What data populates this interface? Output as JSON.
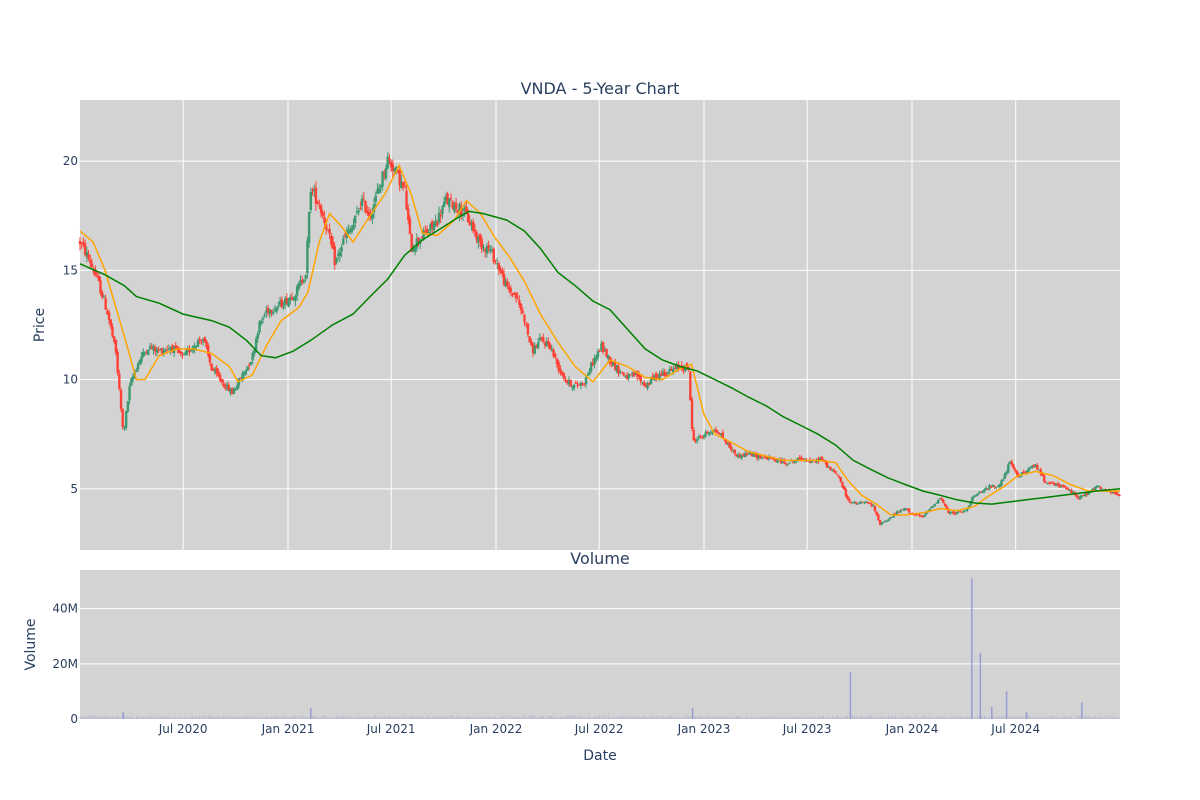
{
  "chart_data": [
    {
      "type": "candlestick",
      "title": "VNDA - 5-Year Chart",
      "xlabel": "",
      "ylabel": "Price",
      "ylim": [
        2.2,
        22.8
      ],
      "yticks": [
        5,
        10,
        15,
        20
      ],
      "xlim": [
        "2020-01-02",
        "2024-12-31"
      ],
      "xticks": [
        {
          "date": "2020-07-01",
          "label": "Jul 2020"
        },
        {
          "date": "2021-01-01",
          "label": "Jan 2021"
        },
        {
          "date": "2021-07-01",
          "label": "Jul 2021"
        },
        {
          "date": "2022-01-01",
          "label": "Jan 2022"
        },
        {
          "date": "2022-07-01",
          "label": "Jul 2022"
        },
        {
          "date": "2023-01-01",
          "label": "Jan 2023"
        },
        {
          "date": "2023-07-01",
          "label": "Jul 2023"
        },
        {
          "date": "2024-01-01",
          "label": "Jan 2024"
        },
        {
          "date": "2024-07-01",
          "label": "Jul 2024"
        }
      ],
      "grid": true,
      "colors": {
        "up": "#3d9970",
        "down": "#ff4136",
        "ma_short": "#ffa500",
        "ma_long": "#008000"
      },
      "price_path": [
        [
          "2020-01-02",
          16.3
        ],
        [
          "2020-01-20",
          15.4
        ],
        [
          "2020-02-05",
          14.3
        ],
        [
          "2020-02-20",
          13.0
        ],
        [
          "2020-03-05",
          11.2
        ],
        [
          "2020-03-18",
          7.5
        ],
        [
          "2020-03-30",
          9.8
        ],
        [
          "2020-04-15",
          10.9
        ],
        [
          "2020-05-01",
          11.5
        ],
        [
          "2020-05-20",
          11.3
        ],
        [
          "2020-06-10",
          11.5
        ],
        [
          "2020-07-01",
          11.0
        ],
        [
          "2020-07-20",
          11.6
        ],
        [
          "2020-08-05",
          11.9
        ],
        [
          "2020-08-20",
          10.5
        ],
        [
          "2020-09-10",
          9.8
        ],
        [
          "2020-09-25",
          9.4
        ],
        [
          "2020-10-15",
          10.3
        ],
        [
          "2020-10-30",
          11.0
        ],
        [
          "2020-11-10",
          12.4
        ],
        [
          "2020-11-25",
          13.2
        ],
        [
          "2020-12-10",
          13.3
        ],
        [
          "2020-12-28",
          13.6
        ],
        [
          "2021-01-15",
          14.0
        ],
        [
          "2021-02-01",
          14.9
        ],
        [
          "2021-02-10",
          18.8
        ],
        [
          "2021-02-25",
          18.0
        ],
        [
          "2021-03-10",
          17.0
        ],
        [
          "2021-03-25",
          15.3
        ],
        [
          "2021-04-10",
          16.5
        ],
        [
          "2021-04-25",
          17.0
        ],
        [
          "2021-05-10",
          18.2
        ],
        [
          "2021-05-25",
          17.5
        ],
        [
          "2021-06-10",
          18.8
        ],
        [
          "2021-06-25",
          20.1
        ],
        [
          "2021-07-10",
          19.5
        ],
        [
          "2021-07-25",
          18.6
        ],
        [
          "2021-08-05",
          16.0
        ],
        [
          "2021-08-20",
          16.5
        ],
        [
          "2021-09-05",
          16.8
        ],
        [
          "2021-09-20",
          17.3
        ],
        [
          "2021-10-05",
          18.2
        ],
        [
          "2021-10-20",
          18.0
        ],
        [
          "2021-11-05",
          17.7
        ],
        [
          "2021-11-20",
          17.0
        ],
        [
          "2021-12-05",
          16.2
        ],
        [
          "2021-12-20",
          16.0
        ],
        [
          "2022-01-05",
          15.2
        ],
        [
          "2022-01-20",
          14.2
        ],
        [
          "2022-02-05",
          13.8
        ],
        [
          "2022-02-20",
          12.8
        ],
        [
          "2022-03-05",
          11.3
        ],
        [
          "2022-03-20",
          11.8
        ],
        [
          "2022-04-05",
          11.6
        ],
        [
          "2022-04-20",
          10.6
        ],
        [
          "2022-05-05",
          9.9
        ],
        [
          "2022-05-20",
          9.7
        ],
        [
          "2022-06-05",
          9.9
        ],
        [
          "2022-06-20",
          10.8
        ],
        [
          "2022-07-05",
          11.5
        ],
        [
          "2022-07-20",
          10.9
        ],
        [
          "2022-08-05",
          10.4
        ],
        [
          "2022-08-20",
          10.1
        ],
        [
          "2022-09-05",
          10.2
        ],
        [
          "2022-09-20",
          9.7
        ],
        [
          "2022-10-05",
          10.1
        ],
        [
          "2022-10-20",
          10.3
        ],
        [
          "2022-11-05",
          10.4
        ],
        [
          "2022-11-20",
          10.6
        ],
        [
          "2022-12-05",
          10.5
        ],
        [
          "2022-12-12",
          7.2
        ],
        [
          "2022-12-28",
          7.4
        ],
        [
          "2023-01-15",
          7.7
        ],
        [
          "2023-01-30",
          7.5
        ],
        [
          "2023-02-15",
          6.9
        ],
        [
          "2023-03-01",
          6.5
        ],
        [
          "2023-03-20",
          6.6
        ],
        [
          "2023-04-05",
          6.5
        ],
        [
          "2023-04-25",
          6.4
        ],
        [
          "2023-05-10",
          6.3
        ],
        [
          "2023-05-25",
          6.2
        ],
        [
          "2023-06-10",
          6.3
        ],
        [
          "2023-06-25",
          6.4
        ],
        [
          "2023-07-10",
          6.2
        ],
        [
          "2023-07-25",
          6.4
        ],
        [
          "2023-08-10",
          5.9
        ],
        [
          "2023-08-25",
          5.6
        ],
        [
          "2023-09-10",
          4.5
        ],
        [
          "2023-09-25",
          4.3
        ],
        [
          "2023-10-10",
          4.4
        ],
        [
          "2023-10-25",
          4.2
        ],
        [
          "2023-11-05",
          3.4
        ],
        [
          "2023-11-20",
          3.6
        ],
        [
          "2023-12-05",
          3.9
        ],
        [
          "2023-12-20",
          4.1
        ],
        [
          "2024-01-05",
          3.8
        ],
        [
          "2024-01-20",
          3.7
        ],
        [
          "2024-02-05",
          4.2
        ],
        [
          "2024-02-20",
          4.6
        ],
        [
          "2024-03-05",
          3.9
        ],
        [
          "2024-03-20",
          3.9
        ],
        [
          "2024-04-05",
          4.0
        ],
        [
          "2024-04-15",
          4.6
        ],
        [
          "2024-04-30",
          4.8
        ],
        [
          "2024-05-15",
          5.1
        ],
        [
          "2024-05-30",
          5.1
        ],
        [
          "2024-06-10",
          5.5
        ],
        [
          "2024-06-20",
          6.2
        ],
        [
          "2024-07-05",
          5.6
        ],
        [
          "2024-07-20",
          5.8
        ],
        [
          "2024-08-05",
          6.1
        ],
        [
          "2024-08-20",
          5.4
        ],
        [
          "2024-09-05",
          5.2
        ],
        [
          "2024-09-20",
          5.1
        ],
        [
          "2024-10-05",
          4.9
        ],
        [
          "2024-10-20",
          4.6
        ],
        [
          "2024-11-05",
          4.8
        ],
        [
          "2024-11-20",
          5.1
        ],
        [
          "2024-12-05",
          4.9
        ],
        [
          "2024-12-31",
          4.7
        ]
      ],
      "ma_short_path": [
        [
          "2020-01-02",
          16.8
        ],
        [
          "2020-01-25",
          16.3
        ],
        [
          "2020-02-15",
          15.0
        ],
        [
          "2020-03-05",
          13.3
        ],
        [
          "2020-03-25",
          11.5
        ],
        [
          "2020-04-10",
          10.0
        ],
        [
          "2020-04-25",
          10.0
        ],
        [
          "2020-05-20",
          11.1
        ],
        [
          "2020-06-20",
          11.4
        ],
        [
          "2020-07-20",
          11.4
        ],
        [
          "2020-08-20",
          11.2
        ],
        [
          "2020-09-20",
          10.6
        ],
        [
          "2020-10-05",
          9.9
        ],
        [
          "2020-10-30",
          10.2
        ],
        [
          "2020-11-25",
          11.6
        ],
        [
          "2020-12-20",
          12.7
        ],
        [
          "2021-01-20",
          13.3
        ],
        [
          "2021-02-05",
          14.0
        ],
        [
          "2021-02-25",
          16.3
        ],
        [
          "2021-03-15",
          17.6
        ],
        [
          "2021-04-05",
          17.0
        ],
        [
          "2021-04-25",
          16.3
        ],
        [
          "2021-05-20",
          17.3
        ],
        [
          "2021-06-20",
          18.5
        ],
        [
          "2021-07-15",
          19.8
        ],
        [
          "2021-08-05",
          18.5
        ],
        [
          "2021-08-25",
          16.7
        ],
        [
          "2021-09-20",
          16.6
        ],
        [
          "2021-10-20",
          17.3
        ],
        [
          "2021-11-10",
          18.2
        ],
        [
          "2021-12-05",
          17.6
        ],
        [
          "2021-12-30",
          16.5
        ],
        [
          "2022-01-25",
          15.6
        ],
        [
          "2022-02-20",
          14.5
        ],
        [
          "2022-03-20",
          13.0
        ],
        [
          "2022-04-20",
          11.7
        ],
        [
          "2022-05-20",
          10.6
        ],
        [
          "2022-06-20",
          9.9
        ],
        [
          "2022-07-20",
          10.9
        ],
        [
          "2022-08-20",
          10.6
        ],
        [
          "2022-09-20",
          10.1
        ],
        [
          "2022-10-20",
          10.0
        ],
        [
          "2022-11-20",
          10.5
        ],
        [
          "2022-12-10",
          10.7
        ],
        [
          "2023-01-01",
          8.4
        ],
        [
          "2023-01-20",
          7.5
        ],
        [
          "2023-02-20",
          7.1
        ],
        [
          "2023-03-20",
          6.7
        ],
        [
          "2023-04-20",
          6.5
        ],
        [
          "2023-05-20",
          6.3
        ],
        [
          "2023-06-20",
          6.3
        ],
        [
          "2023-07-20",
          6.3
        ],
        [
          "2023-08-20",
          6.2
        ],
        [
          "2023-09-10",
          5.4
        ],
        [
          "2023-10-05",
          4.7
        ],
        [
          "2023-10-30",
          4.3
        ],
        [
          "2023-11-25",
          3.8
        ],
        [
          "2023-12-20",
          3.8
        ],
        [
          "2024-01-20",
          3.9
        ],
        [
          "2024-02-20",
          4.1
        ],
        [
          "2024-03-20",
          4.0
        ],
        [
          "2024-04-20",
          4.2
        ],
        [
          "2024-05-10",
          4.6
        ],
        [
          "2024-06-10",
          5.1
        ],
        [
          "2024-07-05",
          5.6
        ],
        [
          "2024-08-05",
          5.8
        ],
        [
          "2024-09-05",
          5.6
        ],
        [
          "2024-10-05",
          5.2
        ],
        [
          "2024-11-05",
          4.9
        ],
        [
          "2024-12-05",
          4.9
        ],
        [
          "2024-12-31",
          4.9
        ]
      ],
      "ma_long_path": [
        [
          "2020-01-02",
          15.3
        ],
        [
          "2020-02-15",
          14.8
        ],
        [
          "2020-03-20",
          14.3
        ],
        [
          "2020-04-10",
          13.8
        ],
        [
          "2020-05-20",
          13.5
        ],
        [
          "2020-07-01",
          13.0
        ],
        [
          "2020-08-20",
          12.7
        ],
        [
          "2020-09-20",
          12.4
        ],
        [
          "2020-10-20",
          11.8
        ],
        [
          "2020-11-15",
          11.1
        ],
        [
          "2020-12-10",
          11.0
        ],
        [
          "2021-01-10",
          11.3
        ],
        [
          "2021-02-10",
          11.8
        ],
        [
          "2021-03-20",
          12.5
        ],
        [
          "2021-04-25",
          13.0
        ],
        [
          "2021-05-25",
          13.8
        ],
        [
          "2021-06-25",
          14.6
        ],
        [
          "2021-07-25",
          15.7
        ],
        [
          "2021-08-25",
          16.4
        ],
        [
          "2021-09-25",
          16.9
        ],
        [
          "2021-10-25",
          17.4
        ],
        [
          "2021-11-15",
          17.7
        ],
        [
          "2021-12-10",
          17.6
        ],
        [
          "2022-01-20",
          17.3
        ],
        [
          "2022-02-20",
          16.8
        ],
        [
          "2022-03-20",
          16.0
        ],
        [
          "2022-04-20",
          14.9
        ],
        [
          "2022-05-20",
          14.3
        ],
        [
          "2022-06-20",
          13.6
        ],
        [
          "2022-07-20",
          13.2
        ],
        [
          "2022-08-20",
          12.3
        ],
        [
          "2022-09-20",
          11.4
        ],
        [
          "2022-10-20",
          10.9
        ],
        [
          "2022-11-20",
          10.6
        ],
        [
          "2022-12-20",
          10.4
        ],
        [
          "2023-01-20",
          10.0
        ],
        [
          "2023-02-20",
          9.6
        ],
        [
          "2023-03-20",
          9.2
        ],
        [
          "2023-04-20",
          8.8
        ],
        [
          "2023-05-20",
          8.3
        ],
        [
          "2023-06-20",
          7.9
        ],
        [
          "2023-07-20",
          7.5
        ],
        [
          "2023-08-20",
          7.0
        ],
        [
          "2023-09-20",
          6.3
        ],
        [
          "2023-10-20",
          5.9
        ],
        [
          "2023-11-20",
          5.5
        ],
        [
          "2023-12-20",
          5.2
        ],
        [
          "2024-01-20",
          4.9
        ],
        [
          "2024-02-20",
          4.7
        ],
        [
          "2024-03-20",
          4.5
        ],
        [
          "2024-04-20",
          4.35
        ],
        [
          "2024-05-20",
          4.3
        ],
        [
          "2024-06-20",
          4.4
        ],
        [
          "2024-07-20",
          4.5
        ],
        [
          "2024-08-20",
          4.6
        ],
        [
          "2024-09-20",
          4.7
        ],
        [
          "2024-10-20",
          4.8
        ],
        [
          "2024-11-20",
          4.9
        ],
        [
          "2024-12-31",
          5.0
        ]
      ]
    },
    {
      "type": "bar",
      "title": "Volume",
      "xlabel": "Date",
      "ylabel": "Volume",
      "ylim": [
        0,
        54000000
      ],
      "yticks": [
        {
          "value": 0,
          "label": "0"
        },
        {
          "value": 20000000,
          "label": "20M"
        },
        {
          "value": 40000000,
          "label": "40M"
        }
      ],
      "xlim": [
        "2020-01-02",
        "2024-12-31"
      ],
      "xticks": [
        {
          "date": "2020-07-01",
          "label": "Jul 2020"
        },
        {
          "date": "2021-01-01",
          "label": "Jan 2021"
        },
        {
          "date": "2021-07-01",
          "label": "Jul 2021"
        },
        {
          "date": "2022-01-01",
          "label": "Jan 2022"
        },
        {
          "date": "2022-07-01",
          "label": "Jul 2022"
        },
        {
          "date": "2023-01-01",
          "label": "Jan 2023"
        },
        {
          "date": "2023-07-01",
          "label": "Jul 2023"
        },
        {
          "date": "2024-01-01",
          "label": "Jan 2024"
        },
        {
          "date": "2024-07-01",
          "label": "Jul 2024"
        }
      ],
      "grid": true,
      "bar_color": "#8b8fd6",
      "baseline_volume": 800000,
      "spikes": [
        [
          "2020-03-18",
          2500000
        ],
        [
          "2021-02-10",
          4000000
        ],
        [
          "2022-12-12",
          4000000
        ],
        [
          "2023-09-15",
          17000000
        ],
        [
          "2024-04-15",
          51000000
        ],
        [
          "2024-04-30",
          24000000
        ],
        [
          "2024-05-20",
          4500000
        ],
        [
          "2024-06-15",
          10000000
        ],
        [
          "2024-07-20",
          2500000
        ],
        [
          "2024-10-25",
          6000000
        ]
      ]
    }
  ]
}
